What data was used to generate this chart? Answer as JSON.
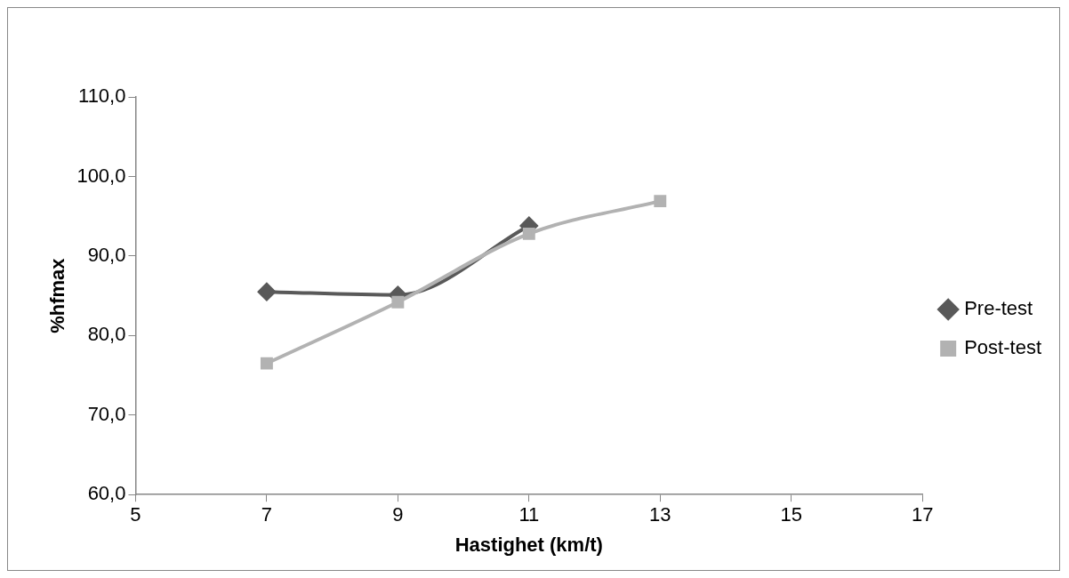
{
  "chart_data": {
    "type": "line",
    "xlabel": "Hastighet (km/t)",
    "ylabel": "%hfmax",
    "xlim": [
      5,
      17
    ],
    "xticks": [
      5,
      7,
      9,
      11,
      13,
      15,
      17
    ],
    "ylim": [
      60,
      110
    ],
    "yticks": [
      {
        "value": 60,
        "label": "60,0"
      },
      {
        "value": 70,
        "label": "70,0"
      },
      {
        "value": 80,
        "label": "80,0"
      },
      {
        "value": 90,
        "label": "90,0"
      },
      {
        "value": 100,
        "label": "100,0"
      },
      {
        "value": 110,
        "label": "110,0"
      }
    ],
    "grid": false,
    "legend": "right",
    "series": [
      {
        "name": "Pre-test",
        "color": "#595959",
        "marker": "diamond",
        "x": [
          7,
          9,
          11
        ],
        "values": [
          85.5,
          85.1,
          93.8
        ]
      },
      {
        "name": "Post-test",
        "color": "#b2b2b2",
        "marker": "square",
        "x": [
          7,
          9,
          11,
          13
        ],
        "values": [
          76.5,
          84.2,
          92.8,
          96.9
        ]
      }
    ]
  }
}
